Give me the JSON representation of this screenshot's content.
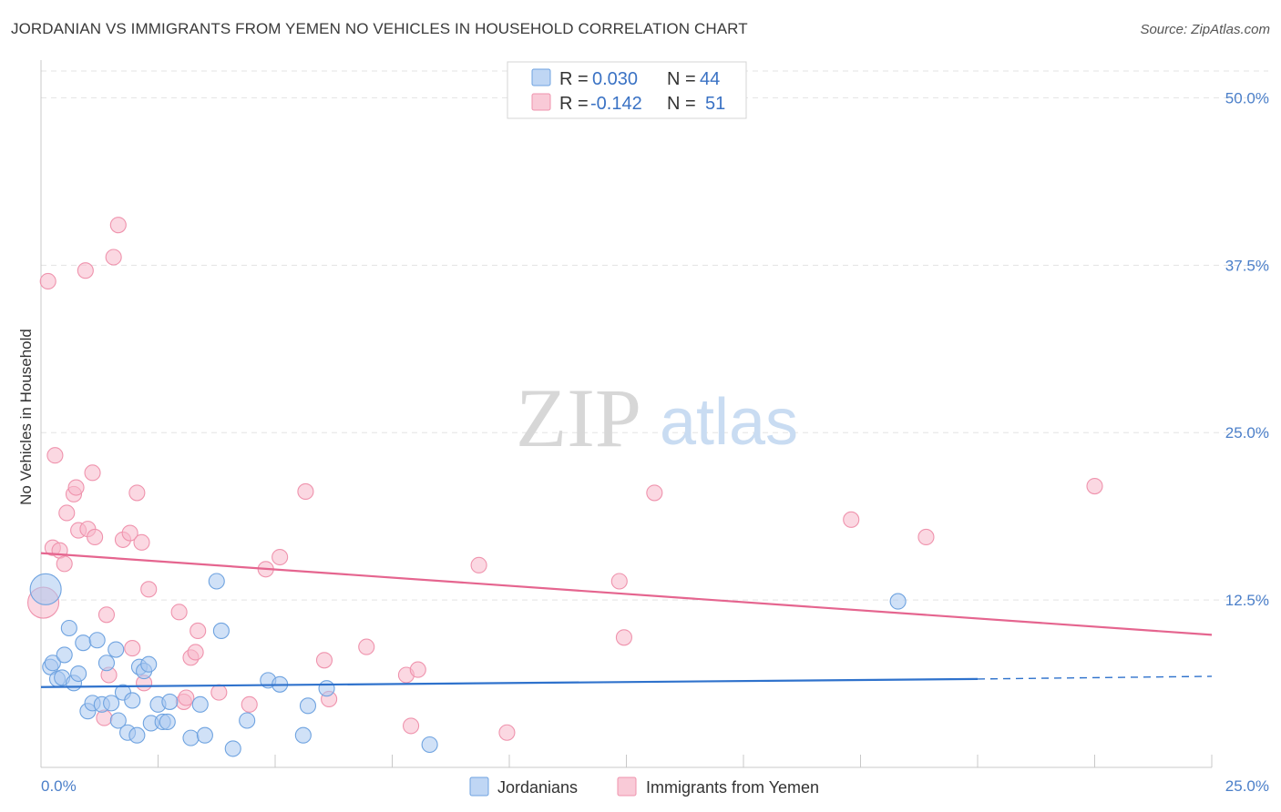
{
  "title": "JORDANIAN VS IMMIGRANTS FROM YEMEN NO VEHICLES IN HOUSEHOLD CORRELATION CHART",
  "source": "Source: ZipAtlas.com",
  "watermark": {
    "zip": "ZIP",
    "atlas": "atlas"
  },
  "legend_top": [
    {
      "r_label": "R =",
      "r_value": "0.030",
      "n_label": "N =",
      "n_value": "44",
      "color": "#a9c8f0"
    },
    {
      "r_label": "R =",
      "r_value": "-0.142",
      "n_label": "N =",
      "n_value": "51",
      "color": "#f7b8ca"
    }
  ],
  "legend_bottom": [
    {
      "label": "Jordanians",
      "color": "#a9c8f0"
    },
    {
      "label": "Immigrants from Yemen",
      "color": "#f7b8ca"
    }
  ],
  "chart_data": {
    "type": "scatter",
    "ylabel": "No Vehicles in Household",
    "xlabel": "",
    "xlim": [
      0,
      25
    ],
    "ylim": [
      0,
      52
    ],
    "x_tick_labels": [
      "0.0%",
      "25.0%"
    ],
    "y_tick_labels": [
      "12.5%",
      "25.0%",
      "37.5%",
      "50.0%"
    ],
    "y_ticks": [
      12.5,
      25.0,
      37.5,
      50.0
    ],
    "grid": true,
    "series": [
      {
        "name": "Jordanians",
        "color": "#6fa3e0",
        "fill": "#a9c8f0",
        "trend": {
          "x0": 0,
          "y0": 6.0,
          "x1": 20,
          "y1": 6.6,
          "x_dash_end": 25,
          "y_dash_end": 6.8,
          "color": "#2f72cc"
        },
        "points": [
          {
            "x": 0.1,
            "y": 13.3,
            "big": true
          },
          {
            "x": 0.2,
            "y": 7.5
          },
          {
            "x": 0.25,
            "y": 7.8
          },
          {
            "x": 0.35,
            "y": 6.6
          },
          {
            "x": 0.45,
            "y": 6.7
          },
          {
            "x": 0.5,
            "y": 8.4
          },
          {
            "x": 0.6,
            "y": 10.4
          },
          {
            "x": 0.7,
            "y": 6.3
          },
          {
            "x": 0.8,
            "y": 7.0
          },
          {
            "x": 0.9,
            "y": 9.3
          },
          {
            "x": 1.0,
            "y": 4.2
          },
          {
            "x": 1.1,
            "y": 4.8
          },
          {
            "x": 1.2,
            "y": 9.5
          },
          {
            "x": 1.3,
            "y": 4.7
          },
          {
            "x": 1.4,
            "y": 7.8
          },
          {
            "x": 1.5,
            "y": 4.8
          },
          {
            "x": 1.6,
            "y": 8.8
          },
          {
            "x": 1.65,
            "y": 3.5
          },
          {
            "x": 1.75,
            "y": 5.6
          },
          {
            "x": 1.85,
            "y": 2.6
          },
          {
            "x": 1.95,
            "y": 5.0
          },
          {
            "x": 2.05,
            "y": 2.4
          },
          {
            "x": 2.1,
            "y": 7.5
          },
          {
            "x": 2.2,
            "y": 7.2
          },
          {
            "x": 2.3,
            "y": 7.7
          },
          {
            "x": 2.35,
            "y": 3.3
          },
          {
            "x": 2.5,
            "y": 4.7
          },
          {
            "x": 2.6,
            "y": 3.4
          },
          {
            "x": 2.7,
            "y": 3.4
          },
          {
            "x": 2.75,
            "y": 4.9
          },
          {
            "x": 3.2,
            "y": 2.2
          },
          {
            "x": 3.4,
            "y": 4.7
          },
          {
            "x": 3.5,
            "y": 2.4
          },
          {
            "x": 3.75,
            "y": 13.9
          },
          {
            "x": 3.85,
            "y": 10.2
          },
          {
            "x": 4.1,
            "y": 1.4
          },
          {
            "x": 4.4,
            "y": 3.5
          },
          {
            "x": 4.85,
            "y": 6.5
          },
          {
            "x": 5.1,
            "y": 6.2
          },
          {
            "x": 5.6,
            "y": 2.4
          },
          {
            "x": 5.7,
            "y": 4.6
          },
          {
            "x": 6.1,
            "y": 5.9
          },
          {
            "x": 8.3,
            "y": 1.7
          },
          {
            "x": 18.3,
            "y": 12.4
          }
        ]
      },
      {
        "name": "Immigrants from Yemen",
        "color": "#ef93ad",
        "fill": "#f7b8ca",
        "trend": {
          "x0": 0,
          "y0": 16.0,
          "x1": 25,
          "y1": 9.9,
          "color": "#e5658f"
        },
        "points": [
          {
            "x": 0.05,
            "y": 12.3,
            "big": true
          },
          {
            "x": 0.15,
            "y": 36.3
          },
          {
            "x": 0.25,
            "y": 16.4
          },
          {
            "x": 0.3,
            "y": 23.3
          },
          {
            "x": 0.4,
            "y": 16.2
          },
          {
            "x": 0.5,
            "y": 15.2
          },
          {
            "x": 0.55,
            "y": 19.0
          },
          {
            "x": 0.7,
            "y": 20.4
          },
          {
            "x": 0.75,
            "y": 20.9
          },
          {
            "x": 0.8,
            "y": 17.7
          },
          {
            "x": 0.95,
            "y": 37.1
          },
          {
            "x": 1.0,
            "y": 17.8
          },
          {
            "x": 1.1,
            "y": 22.0
          },
          {
            "x": 1.15,
            "y": 17.2
          },
          {
            "x": 1.35,
            "y": 3.7
          },
          {
            "x": 1.4,
            "y": 11.4
          },
          {
            "x": 1.45,
            "y": 6.9
          },
          {
            "x": 1.55,
            "y": 38.1
          },
          {
            "x": 1.65,
            "y": 40.5
          },
          {
            "x": 1.75,
            "y": 17.0
          },
          {
            "x": 1.9,
            "y": 17.5
          },
          {
            "x": 1.95,
            "y": 8.9
          },
          {
            "x": 2.05,
            "y": 20.5
          },
          {
            "x": 2.15,
            "y": 16.8
          },
          {
            "x": 2.2,
            "y": 6.3
          },
          {
            "x": 2.3,
            "y": 13.3
          },
          {
            "x": 2.95,
            "y": 11.6
          },
          {
            "x": 3.05,
            "y": 4.9
          },
          {
            "x": 3.1,
            "y": 5.2
          },
          {
            "x": 3.2,
            "y": 8.2
          },
          {
            "x": 3.3,
            "y": 8.6
          },
          {
            "x": 3.35,
            "y": 10.2
          },
          {
            "x": 3.8,
            "y": 5.6
          },
          {
            "x": 4.45,
            "y": 4.7
          },
          {
            "x": 4.8,
            "y": 14.8
          },
          {
            "x": 5.1,
            "y": 15.7
          },
          {
            "x": 5.65,
            "y": 20.6
          },
          {
            "x": 6.05,
            "y": 8.0
          },
          {
            "x": 6.15,
            "y": 5.1
          },
          {
            "x": 6.95,
            "y": 9.0
          },
          {
            "x": 7.8,
            "y": 6.9
          },
          {
            "x": 7.9,
            "y": 3.1
          },
          {
            "x": 8.05,
            "y": 7.3
          },
          {
            "x": 9.35,
            "y": 15.1
          },
          {
            "x": 9.95,
            "y": 2.6
          },
          {
            "x": 12.35,
            "y": 13.9
          },
          {
            "x": 12.45,
            "y": 9.7
          },
          {
            "x": 13.1,
            "y": 20.5
          },
          {
            "x": 17.3,
            "y": 18.5
          },
          {
            "x": 18.9,
            "y": 17.2
          },
          {
            "x": 22.5,
            "y": 21.0
          }
        ]
      }
    ]
  }
}
